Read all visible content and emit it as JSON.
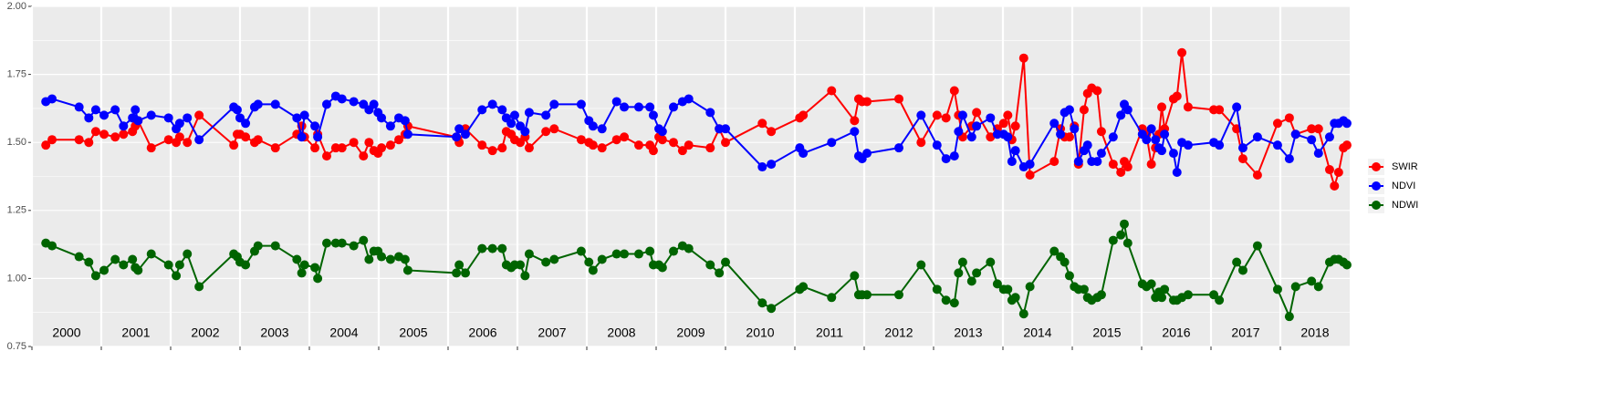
{
  "chart_data": {
    "type": "line",
    "x": [
      2000.2,
      2000.29,
      2000.68,
      2000.82,
      2000.92,
      2001.04,
      2001.2,
      2001.32,
      2001.45,
      2001.49,
      2001.53,
      2001.72,
      2001.97,
      2002.08,
      2002.13,
      2002.24,
      2002.41,
      2002.91,
      2002.96,
      2003.0,
      2003.08,
      2003.21,
      2003.26,
      2003.51,
      2003.82,
      2003.89,
      2003.93,
      2004.08,
      2004.12,
      2004.25,
      2004.38,
      2004.47,
      2004.64,
      2004.78,
      2004.86,
      2004.93,
      2004.99,
      2005.04,
      2005.17,
      2005.29,
      2005.38,
      2005.42,
      2006.12,
      2006.16,
      2006.25,
      2006.49,
      2006.64,
      2006.78,
      2006.84,
      2006.91,
      2006.96,
      2007.04,
      2007.11,
      2007.17,
      2007.41,
      2007.53,
      2007.92,
      2008.03,
      2008.09,
      2008.22,
      2008.43,
      2008.54,
      2008.75,
      2008.91,
      2008.96,
      2009.04,
      2009.09,
      2009.25,
      2009.38,
      2009.47,
      2009.78,
      2009.91,
      2010.0,
      2010.53,
      2010.66,
      2011.07,
      2011.12,
      2011.53,
      2011.86,
      2011.92,
      2011.97,
      2012.04,
      2012.5,
      2012.82,
      2013.05,
      2013.18,
      2013.3,
      2013.36,
      2013.42,
      2013.55,
      2013.62,
      2013.82,
      2013.92,
      2014.01,
      2014.07,
      2014.13,
      2014.18,
      2014.3,
      2014.39,
      2014.74,
      2014.83,
      2014.89,
      2014.96,
      2015.03,
      2015.09,
      2015.17,
      2015.22,
      2015.28,
      2015.36,
      2015.42,
      2015.59,
      2015.7,
      2015.75,
      2015.8,
      2016.01,
      2016.07,
      2016.14,
      2016.2,
      2016.25,
      2016.29,
      2016.33,
      2016.46,
      2016.51,
      2016.58,
      2016.67,
      2017.04,
      2017.12,
      2017.37,
      2017.46,
      2017.67,
      2017.96,
      2018.13,
      2018.22,
      2018.45,
      2018.55,
      2018.71,
      2018.78,
      2018.84,
      2018.91,
      2018.96
    ],
    "series": [
      {
        "name": "SWIR",
        "color": "#ff0000",
        "values": [
          1.49,
          1.51,
          1.51,
          1.5,
          1.54,
          1.53,
          1.52,
          1.53,
          1.54,
          1.56,
          1.58,
          1.48,
          1.51,
          1.5,
          1.52,
          1.5,
          1.6,
          1.49,
          1.53,
          1.53,
          1.52,
          1.5,
          1.51,
          1.48,
          1.53,
          1.56,
          1.52,
          1.48,
          1.53,
          1.45,
          1.48,
          1.48,
          1.5,
          1.45,
          1.5,
          1.47,
          1.46,
          1.48,
          1.49,
          1.51,
          1.53,
          1.56,
          1.52,
          1.5,
          1.55,
          1.49,
          1.47,
          1.48,
          1.54,
          1.53,
          1.51,
          1.5,
          1.52,
          1.48,
          1.54,
          1.55,
          1.51,
          1.5,
          1.49,
          1.48,
          1.51,
          1.52,
          1.49,
          1.49,
          1.47,
          1.52,
          1.51,
          1.5,
          1.47,
          1.49,
          1.48,
          1.55,
          1.5,
          1.57,
          1.54,
          1.59,
          1.6,
          1.69,
          1.58,
          1.66,
          1.65,
          1.65,
          1.66,
          1.5,
          1.6,
          1.59,
          1.69,
          1.6,
          1.52,
          1.56,
          1.61,
          1.52,
          1.55,
          1.57,
          1.6,
          1.51,
          1.56,
          1.81,
          1.38,
          1.43,
          1.55,
          1.52,
          1.52,
          1.56,
          1.42,
          1.62,
          1.68,
          1.7,
          1.69,
          1.54,
          1.42,
          1.39,
          1.43,
          1.41,
          1.55,
          1.53,
          1.42,
          1.48,
          1.53,
          1.63,
          1.55,
          1.66,
          1.67,
          1.83,
          1.63,
          1.62,
          1.62,
          1.55,
          1.44,
          1.38,
          1.57,
          1.59,
          1.53,
          1.55,
          1.55,
          1.4,
          1.34,
          1.39,
          1.48,
          1.49
        ]
      },
      {
        "name": "NDVI",
        "color": "#0000ff",
        "values": [
          1.65,
          1.66,
          1.63,
          1.59,
          1.62,
          1.6,
          1.62,
          1.56,
          1.59,
          1.62,
          1.58,
          1.6,
          1.59,
          1.55,
          1.57,
          1.59,
          1.51,
          1.63,
          1.62,
          1.59,
          1.57,
          1.63,
          1.64,
          1.64,
          1.59,
          1.52,
          1.6,
          1.56,
          1.52,
          1.64,
          1.67,
          1.66,
          1.65,
          1.64,
          1.62,
          1.64,
          1.61,
          1.59,
          1.56,
          1.59,
          1.58,
          1.53,
          1.52,
          1.55,
          1.53,
          1.62,
          1.64,
          1.62,
          1.59,
          1.57,
          1.6,
          1.56,
          1.54,
          1.61,
          1.6,
          1.64,
          1.64,
          1.58,
          1.56,
          1.55,
          1.65,
          1.63,
          1.63,
          1.63,
          1.6,
          1.55,
          1.54,
          1.63,
          1.65,
          1.66,
          1.61,
          1.55,
          1.55,
          1.41,
          1.42,
          1.48,
          1.46,
          1.5,
          1.54,
          1.45,
          1.44,
          1.46,
          1.48,
          1.6,
          1.49,
          1.44,
          1.45,
          1.54,
          1.6,
          1.52,
          1.56,
          1.59,
          1.53,
          1.53,
          1.52,
          1.43,
          1.47,
          1.41,
          1.42,
          1.57,
          1.53,
          1.61,
          1.62,
          1.55,
          1.43,
          1.47,
          1.49,
          1.43,
          1.43,
          1.46,
          1.52,
          1.6,
          1.64,
          1.62,
          1.53,
          1.51,
          1.55,
          1.51,
          1.48,
          1.47,
          1.53,
          1.46,
          1.39,
          1.5,
          1.49,
          1.5,
          1.49,
          1.63,
          1.48,
          1.52,
          1.49,
          1.44,
          1.53,
          1.51,
          1.46,
          1.52,
          1.57,
          1.57,
          1.58,
          1.57
        ]
      },
      {
        "name": "NDWI",
        "color": "#006400",
        "values": [
          1.13,
          1.12,
          1.08,
          1.06,
          1.01,
          1.03,
          1.07,
          1.05,
          1.07,
          1.04,
          1.03,
          1.09,
          1.05,
          1.01,
          1.05,
          1.09,
          0.97,
          1.09,
          1.08,
          1.06,
          1.05,
          1.1,
          1.12,
          1.12,
          1.07,
          1.02,
          1.05,
          1.04,
          1.0,
          1.13,
          1.13,
          1.13,
          1.12,
          1.14,
          1.07,
          1.1,
          1.1,
          1.08,
          1.07,
          1.08,
          1.07,
          1.03,
          1.02,
          1.05,
          1.02,
          1.11,
          1.11,
          1.11,
          1.05,
          1.04,
          1.05,
          1.05,
          1.01,
          1.09,
          1.06,
          1.07,
          1.1,
          1.06,
          1.03,
          1.07,
          1.09,
          1.09,
          1.09,
          1.1,
          1.05,
          1.05,
          1.04,
          1.1,
          1.12,
          1.11,
          1.05,
          1.02,
          1.06,
          0.91,
          0.89,
          0.96,
          0.97,
          0.93,
          1.01,
          0.94,
          0.94,
          0.94,
          0.94,
          1.05,
          0.96,
          0.92,
          0.91,
          1.02,
          1.06,
          0.99,
          1.02,
          1.06,
          0.98,
          0.96,
          0.96,
          0.92,
          0.93,
          0.87,
          0.97,
          1.1,
          1.08,
          1.06,
          1.01,
          0.97,
          0.96,
          0.96,
          0.93,
          0.92,
          0.93,
          0.94,
          1.14,
          1.16,
          1.2,
          1.13,
          0.98,
          0.97,
          0.98,
          0.93,
          0.95,
          0.93,
          0.96,
          0.92,
          0.92,
          0.93,
          0.94,
          0.94,
          0.92,
          1.06,
          1.03,
          1.12,
          0.96,
          0.86,
          0.97,
          0.99,
          0.97,
          1.06,
          1.07,
          1.07,
          1.06,
          1.05
        ]
      }
    ],
    "xlim": [
      2000,
      2019
    ],
    "xticks": [
      2000,
      2001,
      2002,
      2003,
      2004,
      2005,
      2006,
      2007,
      2008,
      2009,
      2010,
      2011,
      2012,
      2013,
      2014,
      2015,
      2016,
      2017,
      2018
    ],
    "ylim": [
      0.75,
      2.0
    ],
    "yticks": [
      0.75,
      {
        "value": 1,
        "label": "1.00"
      },
      {
        "value": 1.25,
        "label": "1.25"
      },
      {
        "value": 1.5,
        "label": "1.50"
      },
      {
        "value": 1.75,
        "label": "1.75"
      },
      {
        "value": 2,
        "label": "2.00"
      }
    ],
    "grid": true,
    "legend": "right"
  }
}
